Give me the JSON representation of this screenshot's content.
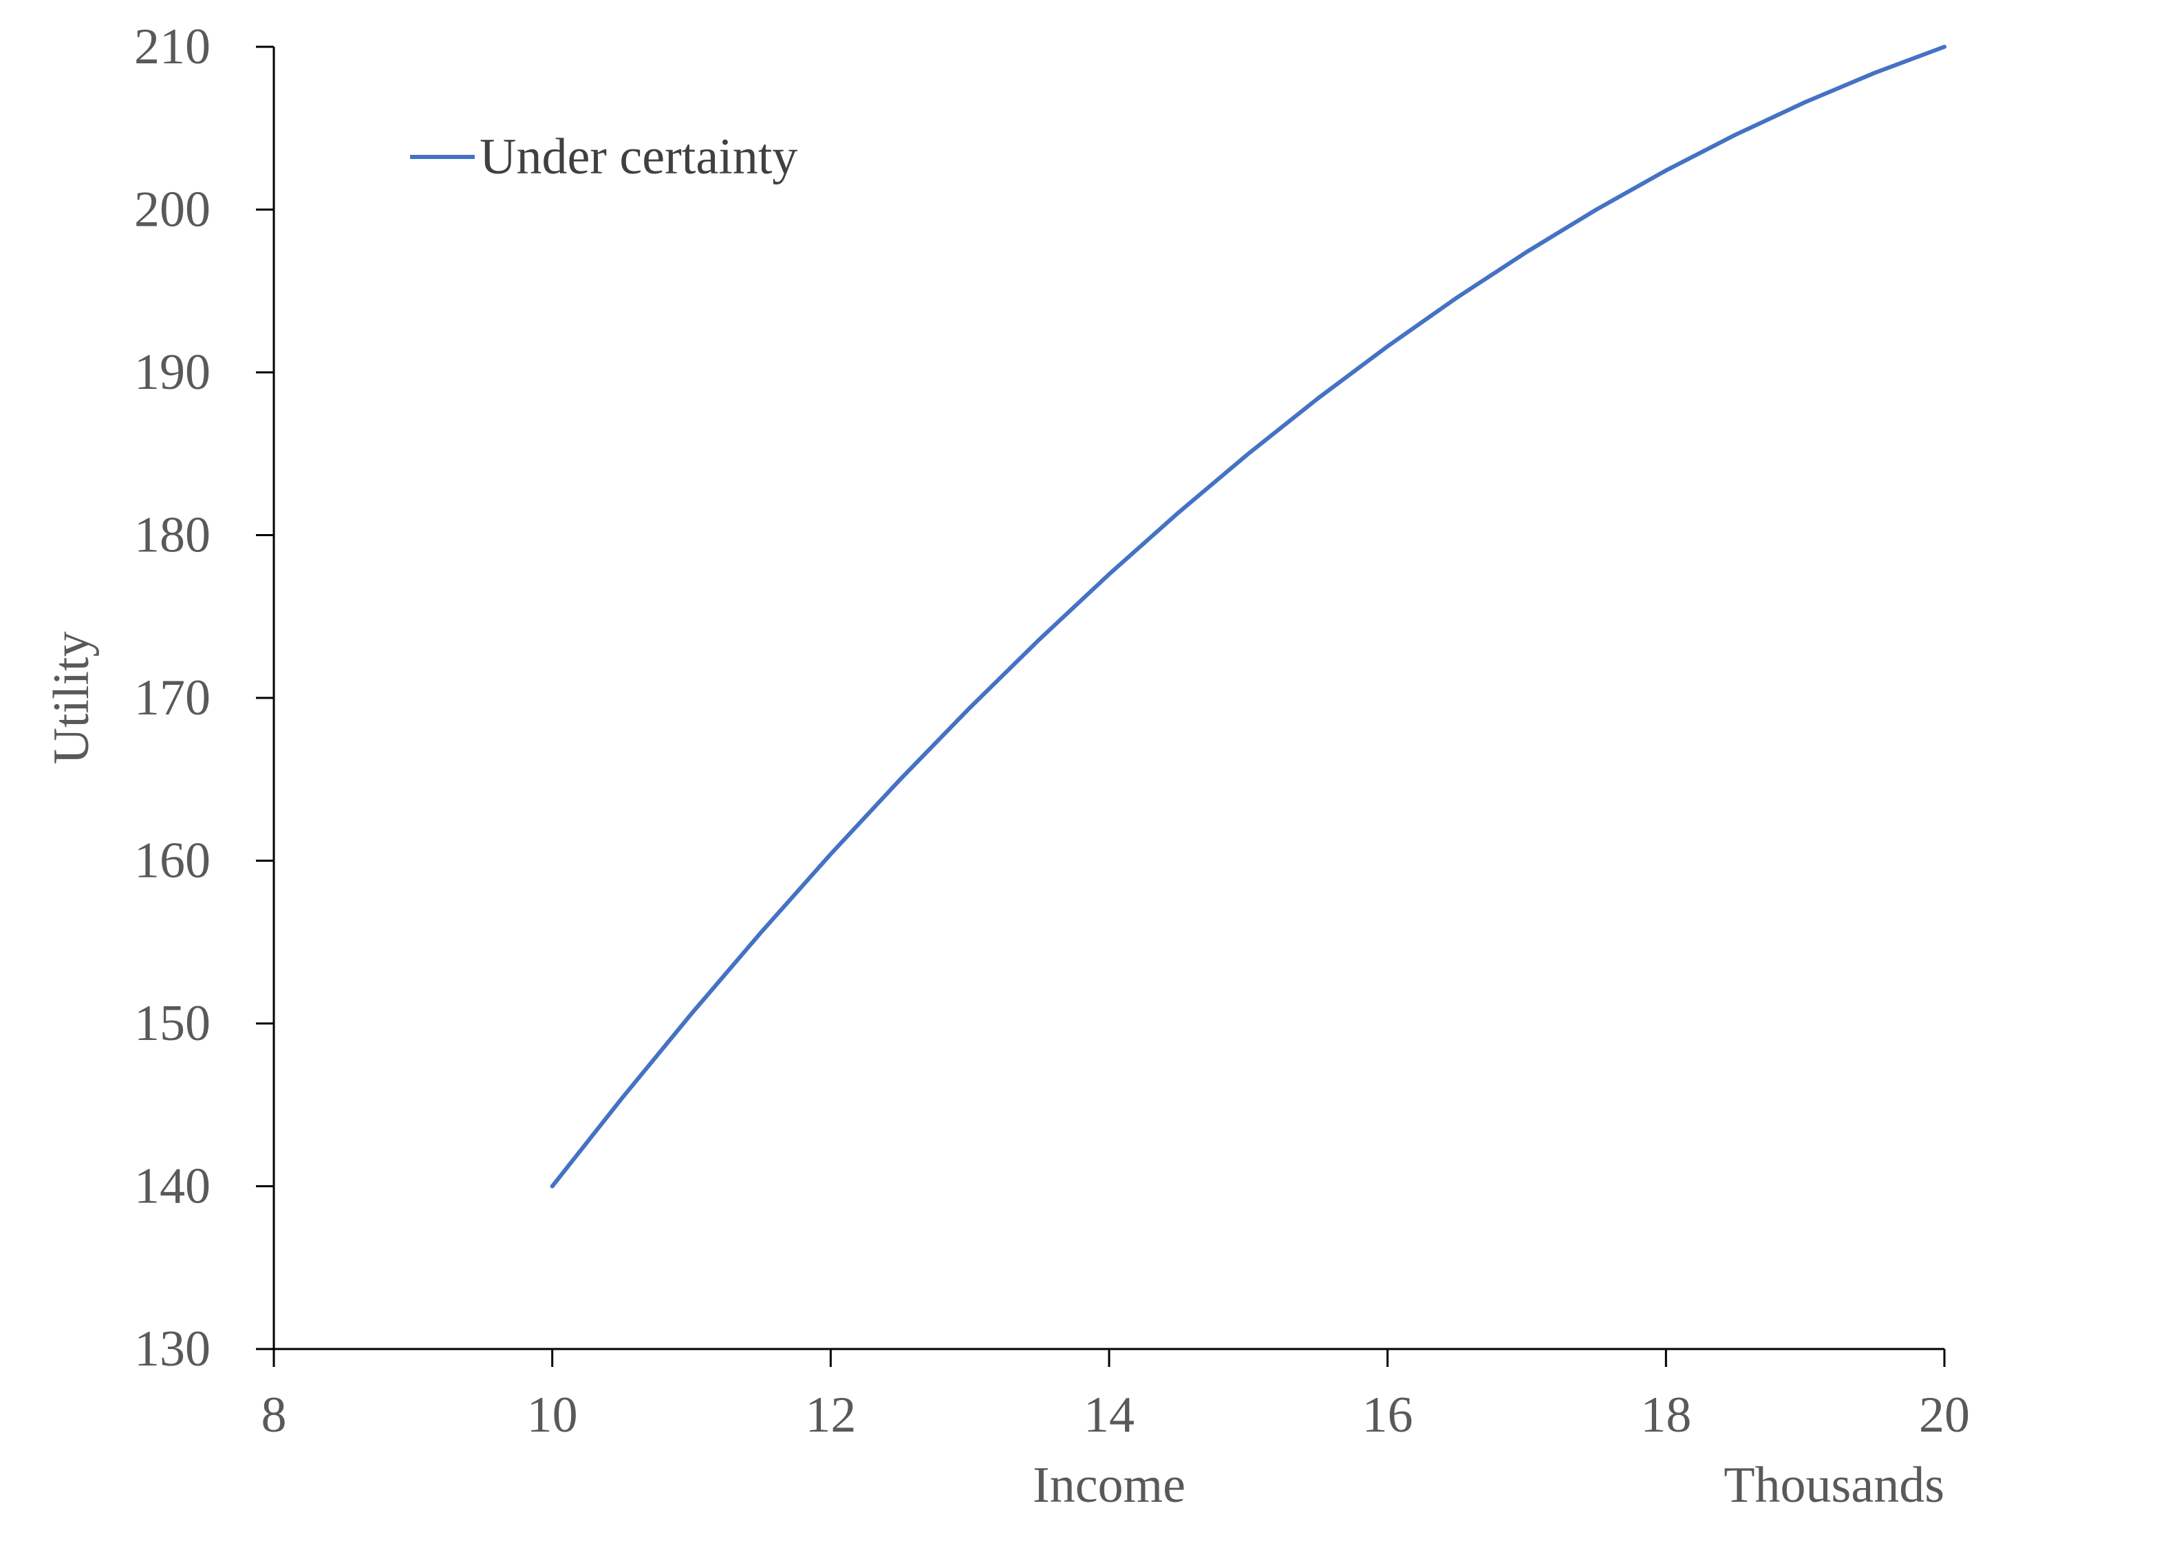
{
  "chart_data": {
    "type": "line",
    "title": "",
    "xlabel": "Income",
    "x_unit_label": "Thousands",
    "ylabel": "Utility",
    "xlim": [
      8,
      20
    ],
    "ylim": [
      130,
      210
    ],
    "x_ticks": [
      8,
      10,
      12,
      14,
      16,
      18,
      20
    ],
    "y_ticks": [
      130,
      140,
      150,
      160,
      170,
      180,
      190,
      200,
      210
    ],
    "x_tick_labels": [
      "8",
      "10",
      "12",
      "14",
      "16",
      "18",
      "20"
    ],
    "y_tick_labels": [
      "130",
      "140",
      "150",
      "160",
      "170",
      "180",
      "190",
      "200",
      "210"
    ],
    "grid": false,
    "legend": {
      "position": "top-left",
      "entries": [
        "Under certainty"
      ]
    },
    "series": [
      {
        "name": "Under certainty",
        "color": "#4472C4",
        "x": [
          10,
          10.5,
          11,
          11.5,
          12,
          12.5,
          13,
          13.5,
          14,
          14.5,
          15,
          15.5,
          16,
          16.5,
          17,
          17.5,
          18,
          18.5,
          19,
          19.5,
          20
        ],
        "y": [
          140,
          145.4,
          150.6,
          155.6,
          160.4,
          165,
          169.4,
          173.6,
          177.6,
          181.4,
          185,
          188.4,
          191.6,
          194.6,
          197.4,
          200,
          202.4,
          204.6,
          206.6,
          208.4,
          210
        ]
      }
    ]
  }
}
